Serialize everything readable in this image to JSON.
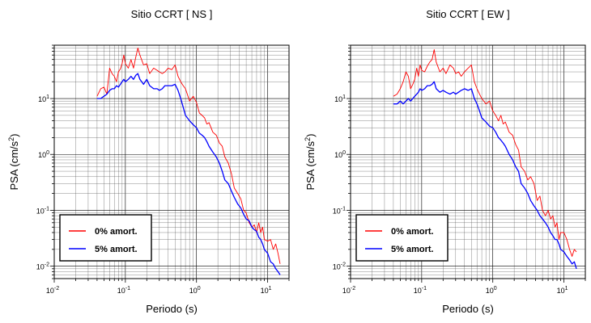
{
  "chart_data": [
    {
      "type": "line",
      "title": "Sitio CCRT [ NS ]",
      "xlabel": "Periodo (s)",
      "ylabel": "PSA (cm/s²)",
      "xscale": "log",
      "yscale": "log",
      "xlim": [
        0.01,
        20
      ],
      "ylim": [
        0.006,
        90
      ],
      "grid": true,
      "legend_position": "bottom-left",
      "xtick_labels": [
        "10-2",
        "10-1",
        "100",
        "101"
      ],
      "ytick_labels": [
        "10-2",
        "10-1",
        "100",
        "101"
      ],
      "series": [
        {
          "name": "0% amort.",
          "color": "#ff0000",
          "x": [
            0.04,
            0.045,
            0.05,
            0.055,
            0.06,
            0.065,
            0.07,
            0.075,
            0.08,
            0.085,
            0.09,
            0.095,
            0.1,
            0.11,
            0.12,
            0.13,
            0.14,
            0.15,
            0.16,
            0.18,
            0.2,
            0.22,
            0.25,
            0.28,
            0.3,
            0.33,
            0.36,
            0.4,
            0.45,
            0.5,
            0.55,
            0.6,
            0.65,
            0.7,
            0.8,
            0.9,
            1.0,
            1.1,
            1.2,
            1.3,
            1.4,
            1.5,
            1.7,
            1.9,
            2.1,
            2.3,
            2.5,
            2.8,
            3.1,
            3.4,
            3.8,
            4.2,
            4.6,
            5.0,
            5.5,
            6.0,
            6.5,
            7.0,
            7.5,
            8.0,
            8.5,
            9.0,
            10.0,
            11.0,
            12.0,
            13.0,
            14.0,
            15.0
          ],
          "values": [
            11,
            15,
            16,
            12,
            35,
            28,
            25,
            20,
            30,
            34,
            42,
            60,
            42,
            35,
            50,
            35,
            55,
            80,
            60,
            40,
            42,
            28,
            35,
            32,
            30,
            28,
            30,
            35,
            33,
            40,
            25,
            20,
            17,
            15,
            9,
            11,
            8.5,
            5.5,
            5,
            4.5,
            3.5,
            3.7,
            2.5,
            2.2,
            1.6,
            1.4,
            0.9,
            0.7,
            0.45,
            0.25,
            0.2,
            0.16,
            0.1,
            0.09,
            0.06,
            0.05,
            0.055,
            0.04,
            0.06,
            0.04,
            0.05,
            0.03,
            0.028,
            0.03,
            0.02,
            0.025,
            0.017,
            0.011
          ]
        },
        {
          "name": "5% amort.",
          "color": "#0000ff",
          "x": [
            0.04,
            0.045,
            0.05,
            0.055,
            0.06,
            0.065,
            0.07,
            0.075,
            0.08,
            0.085,
            0.09,
            0.095,
            0.1,
            0.11,
            0.12,
            0.13,
            0.14,
            0.15,
            0.16,
            0.18,
            0.2,
            0.22,
            0.25,
            0.28,
            0.3,
            0.33,
            0.36,
            0.4,
            0.45,
            0.5,
            0.55,
            0.6,
            0.65,
            0.7,
            0.8,
            0.9,
            1.0,
            1.1,
            1.2,
            1.3,
            1.4,
            1.5,
            1.7,
            1.9,
            2.1,
            2.3,
            2.5,
            2.8,
            3.1,
            3.4,
            3.8,
            4.2,
            4.6,
            5.0,
            5.5,
            6.0,
            6.5,
            7.0,
            7.5,
            8.0,
            8.5,
            9.0,
            10.0,
            11.0,
            12.0,
            13.0,
            14.0,
            15.0
          ],
          "values": [
            10,
            10,
            11,
            12,
            14,
            15,
            15,
            17,
            16,
            18,
            20,
            22,
            20,
            22,
            25,
            22,
            26,
            28,
            22,
            18,
            22,
            17,
            15,
            15,
            14,
            15,
            17,
            17,
            17,
            18,
            14,
            10,
            7,
            5,
            4,
            3.4,
            3,
            2.4,
            2.2,
            2.0,
            1.7,
            1.4,
            1.1,
            0.9,
            0.7,
            0.5,
            0.35,
            0.3,
            0.22,
            0.17,
            0.13,
            0.11,
            0.085,
            0.07,
            0.065,
            0.05,
            0.045,
            0.042,
            0.033,
            0.03,
            0.025,
            0.02,
            0.017,
            0.012,
            0.011,
            0.009,
            0.008,
            0.007
          ]
        }
      ]
    },
    {
      "type": "line",
      "title": "Sitio CCRT [ EW ]",
      "xlabel": "Periodo (s)",
      "ylabel": "PSA (cm/s²)",
      "xscale": "log",
      "yscale": "log",
      "xlim": [
        0.01,
        20
      ],
      "ylim": [
        0.006,
        90
      ],
      "grid": true,
      "legend_position": "bottom-left",
      "xtick_labels": [
        "10-2",
        "10-1",
        "100",
        "101"
      ],
      "ytick_labels": [
        "10-2",
        "10-1",
        "100",
        "101"
      ],
      "series": [
        {
          "name": "0% amort.",
          "color": "#ff0000",
          "x": [
            0.04,
            0.045,
            0.05,
            0.055,
            0.06,
            0.065,
            0.07,
            0.075,
            0.08,
            0.085,
            0.09,
            0.095,
            0.1,
            0.11,
            0.12,
            0.13,
            0.14,
            0.15,
            0.16,
            0.18,
            0.2,
            0.22,
            0.25,
            0.28,
            0.3,
            0.33,
            0.36,
            0.4,
            0.45,
            0.5,
            0.55,
            0.6,
            0.65,
            0.7,
            0.8,
            0.9,
            1.0,
            1.1,
            1.2,
            1.3,
            1.4,
            1.5,
            1.7,
            1.9,
            2.1,
            2.3,
            2.5,
            2.8,
            3.1,
            3.4,
            3.8,
            4.2,
            4.6,
            5.0,
            5.5,
            6.0,
            6.5,
            7.0,
            7.5,
            8.0,
            8.5,
            9.0,
            10.0,
            11.0,
            12.0,
            13.0,
            14.0,
            15.0
          ],
          "values": [
            11,
            12,
            15,
            20,
            30,
            25,
            15,
            18,
            22,
            35,
            25,
            40,
            32,
            30,
            38,
            45,
            50,
            75,
            45,
            30,
            35,
            28,
            40,
            35,
            28,
            30,
            25,
            30,
            35,
            40,
            20,
            15,
            12,
            10,
            8,
            9,
            6,
            5,
            4,
            5,
            3.5,
            3.8,
            2.5,
            2.2,
            1.5,
            1.2,
            0.6,
            0.5,
            0.35,
            0.4,
            0.3,
            0.15,
            0.18,
            0.1,
            0.08,
            0.1,
            0.07,
            0.08,
            0.05,
            0.06,
            0.03,
            0.04,
            0.04,
            0.03,
            0.02,
            0.015,
            0.02,
            0.018
          ]
        },
        {
          "name": "5% amort.",
          "color": "#0000ff",
          "x": [
            0.04,
            0.045,
            0.05,
            0.055,
            0.06,
            0.065,
            0.07,
            0.075,
            0.08,
            0.085,
            0.09,
            0.095,
            0.1,
            0.11,
            0.12,
            0.13,
            0.14,
            0.15,
            0.16,
            0.18,
            0.2,
            0.22,
            0.25,
            0.28,
            0.3,
            0.33,
            0.36,
            0.4,
            0.45,
            0.5,
            0.55,
            0.6,
            0.65,
            0.7,
            0.8,
            0.9,
            1.0,
            1.1,
            1.2,
            1.3,
            1.4,
            1.5,
            1.7,
            1.9,
            2.1,
            2.3,
            2.5,
            2.8,
            3.1,
            3.4,
            3.8,
            4.2,
            4.6,
            5.0,
            5.5,
            6.0,
            6.5,
            7.0,
            7.5,
            8.0,
            8.5,
            9.0,
            10.0,
            11.0,
            12.0,
            13.0,
            14.0,
            15.0
          ],
          "values": [
            8,
            8,
            9,
            8,
            9,
            10,
            9,
            10,
            11,
            12,
            13,
            15,
            14,
            15,
            17,
            17,
            18,
            20,
            15,
            13,
            14,
            13,
            12,
            13,
            12,
            13,
            14,
            15,
            14,
            15,
            10,
            8,
            6,
            4.5,
            3.8,
            3.2,
            3,
            2.5,
            2,
            1.8,
            1.6,
            1.4,
            1.0,
            0.8,
            0.6,
            0.5,
            0.3,
            0.25,
            0.2,
            0.15,
            0.12,
            0.1,
            0.08,
            0.07,
            0.06,
            0.05,
            0.04,
            0.035,
            0.03,
            0.03,
            0.025,
            0.02,
            0.018,
            0.015,
            0.013,
            0.011,
            0.012,
            0.009
          ]
        }
      ]
    }
  ]
}
